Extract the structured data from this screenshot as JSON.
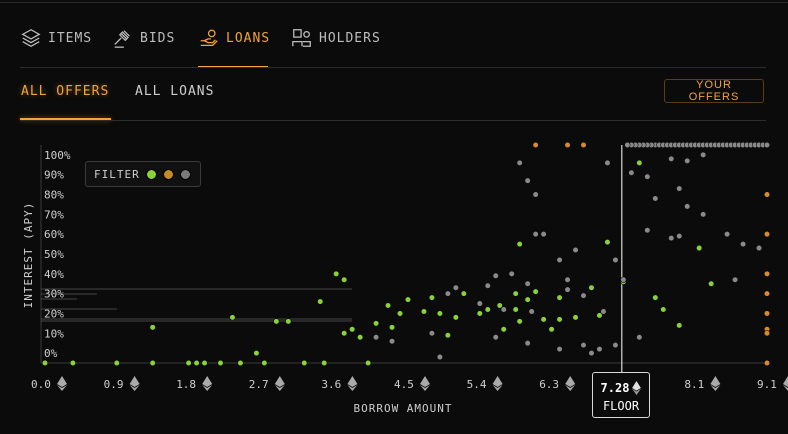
{
  "tabs": [
    {
      "label": "ITEMS",
      "icon": "layers-icon"
    },
    {
      "label": "BIDS",
      "icon": "gavel-icon"
    },
    {
      "label": "LOANS",
      "icon": "hand-coin-icon"
    },
    {
      "label": "HOLDERS",
      "icon": "users-icon"
    }
  ],
  "active_tab": "LOANS",
  "subtabs": [
    "ALL OFFERS",
    "ALL LOANS"
  ],
  "active_subtab": "ALL OFFERS",
  "your_offers_label": "YOUR OFFERS",
  "filter": {
    "label": "FILTER",
    "dots": [
      "#8ad13a",
      "#c58a2a",
      "#7a7a7a"
    ]
  },
  "floor": {
    "value": "7.28",
    "label": "FLOOR"
  },
  "colors": {
    "accent": "#f3a33a",
    "green": "#8ad13a",
    "gray": "#8a8a8a",
    "orange": "#d98a2a"
  },
  "chart_data": {
    "type": "scatter",
    "xlabel": "BORROW AMOUNT",
    "ylabel": "INTEREST (APY)",
    "x_ticks": [
      "0.0",
      "0.9",
      "1.8",
      "2.7",
      "3.6",
      "4.5",
      "5.4",
      "6.3",
      "7.2",
      "8.1",
      "9.1"
    ],
    "y_ticks": [
      "0%",
      "10%",
      "20%",
      "30%",
      "40%",
      "50%",
      "60%",
      "70%",
      "80%",
      "90%",
      "100%"
    ],
    "xlim": [
      0,
      9.1
    ],
    "ylim": [
      -5,
      105
    ],
    "floor_x": 7.28,
    "series": [
      {
        "color": "green",
        "points": [
          [
            0.05,
            -5
          ],
          [
            0.4,
            -5
          ],
          [
            0.95,
            -5
          ],
          [
            1.4,
            -5
          ],
          [
            1.85,
            -5
          ],
          [
            1.95,
            -5
          ],
          [
            2.05,
            -5
          ],
          [
            2.25,
            -5
          ],
          [
            2.5,
            -5
          ],
          [
            2.8,
            -5
          ],
          [
            3.3,
            -5
          ],
          [
            3.55,
            -5
          ],
          [
            4.1,
            -5
          ],
          [
            2.7,
            0
          ],
          [
            2.4,
            18
          ],
          [
            2.95,
            16
          ],
          [
            3.1,
            16
          ],
          [
            3.5,
            26
          ],
          [
            3.7,
            40
          ],
          [
            3.8,
            37
          ],
          [
            4.2,
            15
          ],
          [
            4.35,
            24
          ],
          [
            4.5,
            20
          ],
          [
            4.6,
            27
          ],
          [
            4.8,
            21
          ],
          [
            4.9,
            28
          ],
          [
            5.0,
            20
          ],
          [
            5.2,
            18
          ],
          [
            5.3,
            30
          ],
          [
            5.5,
            20
          ],
          [
            5.6,
            22
          ],
          [
            5.75,
            24
          ],
          [
            5.95,
            22
          ],
          [
            5.95,
            30
          ],
          [
            6.0,
            16
          ],
          [
            6.1,
            27
          ],
          [
            6.2,
            31
          ],
          [
            6.0,
            55
          ],
          [
            6.3,
            17
          ],
          [
            6.5,
            28
          ],
          [
            6.5,
            17
          ],
          [
            6.7,
            18
          ],
          [
            6.9,
            33
          ],
          [
            7.0,
            19
          ],
          [
            7.1,
            56
          ],
          [
            7.3,
            36
          ],
          [
            7.5,
            96
          ],
          [
            7.7,
            28
          ],
          [
            7.8,
            22
          ],
          [
            8.0,
            14
          ],
          [
            8.25,
            53
          ],
          [
            8.4,
            35
          ],
          [
            3.9,
            12
          ],
          [
            4.0,
            8
          ],
          [
            3.8,
            10
          ],
          [
            4.4,
            13
          ],
          [
            5.1,
            9
          ],
          [
            1.4,
            13
          ],
          [
            5.8,
            12
          ],
          [
            6.4,
            12
          ]
        ]
      },
      {
        "color": "gray",
        "points": [
          [
            4.9,
            10
          ],
          [
            5.1,
            30
          ],
          [
            5.2,
            33
          ],
          [
            5.5,
            25
          ],
          [
            5.6,
            34
          ],
          [
            5.7,
            39
          ],
          [
            5.8,
            22
          ],
          [
            5.9,
            40
          ],
          [
            6.1,
            35
          ],
          [
            6.15,
            21
          ],
          [
            6.2,
            60
          ],
          [
            6.3,
            60
          ],
          [
            6.5,
            47
          ],
          [
            6.6,
            37
          ],
          [
            6.6,
            32
          ],
          [
            6.7,
            52
          ],
          [
            6.8,
            29
          ],
          [
            7.0,
            2
          ],
          [
            7.05,
            21
          ],
          [
            7.2,
            47
          ],
          [
            7.3,
            37
          ],
          [
            7.5,
            8
          ],
          [
            7.6,
            62
          ],
          [
            7.7,
            78
          ],
          [
            7.9,
            58
          ],
          [
            8.0,
            83
          ],
          [
            8.1,
            74
          ],
          [
            8.0,
            59
          ],
          [
            8.3,
            70
          ],
          [
            8.6,
            60
          ],
          [
            8.7,
            37
          ],
          [
            8.8,
            55
          ],
          [
            9.0,
            53
          ],
          [
            6.8,
            4
          ],
          [
            6.9,
            0
          ],
          [
            7.2,
            4
          ],
          [
            6.5,
            2
          ],
          [
            6.1,
            5
          ],
          [
            5.7,
            8
          ],
          [
            6.0,
            96
          ],
          [
            6.1,
            87
          ],
          [
            6.2,
            80
          ],
          [
            7.1,
            96
          ],
          [
            7.4,
            91
          ],
          [
            7.6,
            89
          ],
          [
            7.9,
            98
          ],
          [
            8.1,
            97
          ],
          [
            8.3,
            100
          ],
          [
            4.2,
            8
          ],
          [
            5.0,
            -2
          ],
          [
            4.4,
            6
          ]
        ]
      },
      {
        "color": "orange",
        "points": [
          [
            6.2,
            105
          ],
          [
            6.6,
            105
          ],
          [
            6.8,
            105
          ],
          [
            9.1,
            40
          ],
          [
            9.1,
            60
          ],
          [
            9.1,
            80
          ],
          [
            9.1,
            20
          ],
          [
            9.1,
            30
          ],
          [
            9.1,
            12
          ],
          [
            9.1,
            10
          ],
          [
            9.1,
            -5
          ]
        ]
      },
      {
        "color": "gray",
        "points": [
          [
            7.7,
            105
          ],
          [
            7.75,
            105
          ],
          [
            7.8,
            105
          ],
          [
            7.85,
            105
          ],
          [
            7.9,
            105
          ],
          [
            7.95,
            105
          ],
          [
            8.0,
            105
          ],
          [
            8.05,
            105
          ],
          [
            8.1,
            105
          ],
          [
            8.15,
            105
          ],
          [
            8.2,
            105
          ],
          [
            8.25,
            105
          ],
          [
            8.3,
            105
          ],
          [
            8.35,
            105
          ],
          [
            8.4,
            105
          ],
          [
            8.45,
            105
          ],
          [
            8.5,
            105
          ],
          [
            8.55,
            105
          ],
          [
            8.6,
            105
          ],
          [
            8.65,
            105
          ],
          [
            8.7,
            105
          ],
          [
            8.75,
            105
          ],
          [
            8.8,
            105
          ],
          [
            8.85,
            105
          ],
          [
            8.9,
            105
          ],
          [
            8.95,
            105
          ],
          [
            9.0,
            105
          ],
          [
            9.05,
            105
          ],
          [
            9.1,
            105
          ],
          [
            7.65,
            105
          ],
          [
            7.6,
            105
          ],
          [
            7.55,
            105
          ],
          [
            7.5,
            105
          ],
          [
            7.45,
            105
          ],
          [
            7.4,
            105
          ],
          [
            7.35,
            105
          ]
        ]
      }
    ]
  }
}
